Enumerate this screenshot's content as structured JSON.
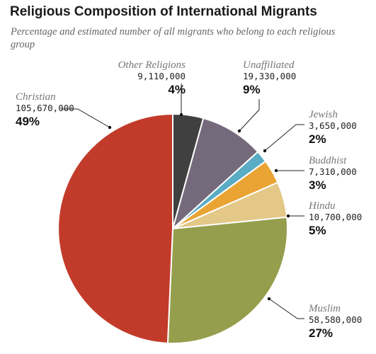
{
  "title": "Religious Composition of International Migrants",
  "subtitle": "Percentage and estimated number of all migrants who belong to each religious group",
  "chart_data": {
    "type": "pie",
    "title": "Religious Composition of International Migrants",
    "subtitle": "Percentage and estimated number of all migrants who belong to each religious group",
    "slices": [
      {
        "label": "Other Religions",
        "count": "9,110,000",
        "percent_label": "4%",
        "value": 4.3,
        "color": "#404040"
      },
      {
        "label": "Unaffiliated",
        "count": "19,330,000",
        "percent_label": "9%",
        "value": 9.0,
        "color": "#746a7b"
      },
      {
        "label": "Jewish",
        "count": "3,650,000",
        "percent_label": "2%",
        "value": 1.7,
        "color": "#5aabc4"
      },
      {
        "label": "Buddhist",
        "count": "7,310,000",
        "percent_label": "3%",
        "value": 3.4,
        "color": "#e9a434"
      },
      {
        "label": "Hindu",
        "count": "10,700,000",
        "percent_label": "5%",
        "value": 5.0,
        "color": "#e3c887"
      },
      {
        "label": "Muslim",
        "count": "58,580,000",
        "percent_label": "27%",
        "value": 27.3,
        "color": "#959e4c"
      },
      {
        "label": "Christian",
        "count": "105,670,000",
        "percent_label": "49%",
        "value": 49.3,
        "color": "#c23b2a"
      }
    ]
  }
}
